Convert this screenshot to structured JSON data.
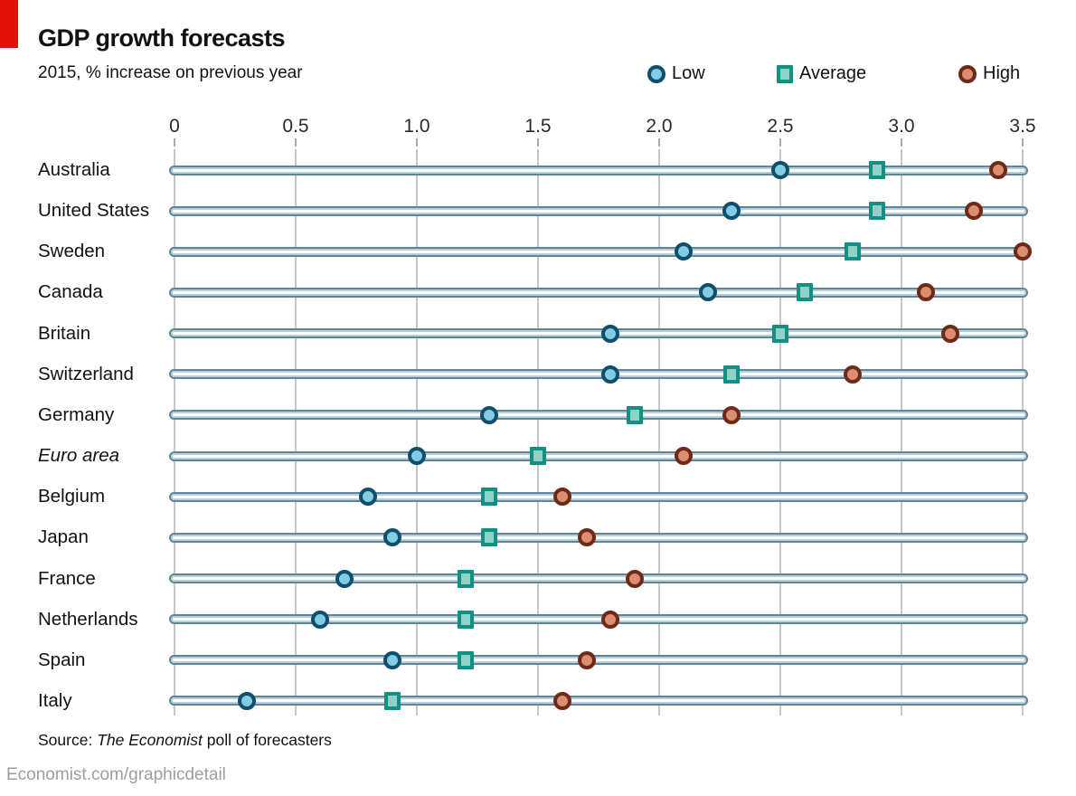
{
  "header": {
    "accent_red": "#e3120b"
  },
  "source": {
    "prefix": "Source: ",
    "italic": "The Economist",
    "suffix": " poll of forecasters"
  },
  "footer": {
    "credit": "Economist.com/graphicdetail"
  },
  "chart_data": {
    "type": "scatter",
    "title": "GDP growth forecasts",
    "subtitle": "2015, % increase on previous year",
    "orientation": "horizontal-dot-plot",
    "xlim": [
      0,
      3.5
    ],
    "x_ticks": [
      0,
      0.5,
      1.0,
      1.5,
      2.0,
      2.5,
      3.0,
      3.5
    ],
    "x_tick_labels": [
      "0",
      "0.5",
      "1.0",
      "1.5",
      "2.0",
      "2.5",
      "3.0",
      "3.5"
    ],
    "grid": "vertical-only",
    "legend_position": "top-right",
    "gridline_color": "#c7c7c7",
    "track_color": "#5f8599",
    "categories": [
      "Australia",
      "United States",
      "Sweden",
      "Canada",
      "Britain",
      "Switzerland",
      "Germany",
      "Euro area",
      "Belgium",
      "Japan",
      "France",
      "Netherlands",
      "Spain",
      "Italy"
    ],
    "italic_categories": [
      "Euro area"
    ],
    "series": [
      {
        "name": "Low",
        "marker": "circle",
        "fill": "#82cce4",
        "stroke": "#0f4f6b",
        "values": [
          2.5,
          2.3,
          2.1,
          2.2,
          1.8,
          1.8,
          1.3,
          1.0,
          0.8,
          0.9,
          0.7,
          0.6,
          0.9,
          0.3
        ]
      },
      {
        "name": "Average",
        "marker": "square",
        "fill": "#8fd2c6",
        "stroke": "#109183",
        "values": [
          2.9,
          2.9,
          2.8,
          2.6,
          2.5,
          2.3,
          1.9,
          1.5,
          1.3,
          1.3,
          1.2,
          1.2,
          1.2,
          0.9
        ]
      },
      {
        "name": "High",
        "marker": "circle",
        "fill": "#dc8e72",
        "stroke": "#6e2917",
        "values": [
          3.4,
          3.3,
          3.5,
          3.1,
          3.2,
          2.8,
          2.3,
          2.1,
          1.6,
          1.7,
          1.9,
          1.8,
          1.7,
          1.6
        ]
      }
    ]
  }
}
